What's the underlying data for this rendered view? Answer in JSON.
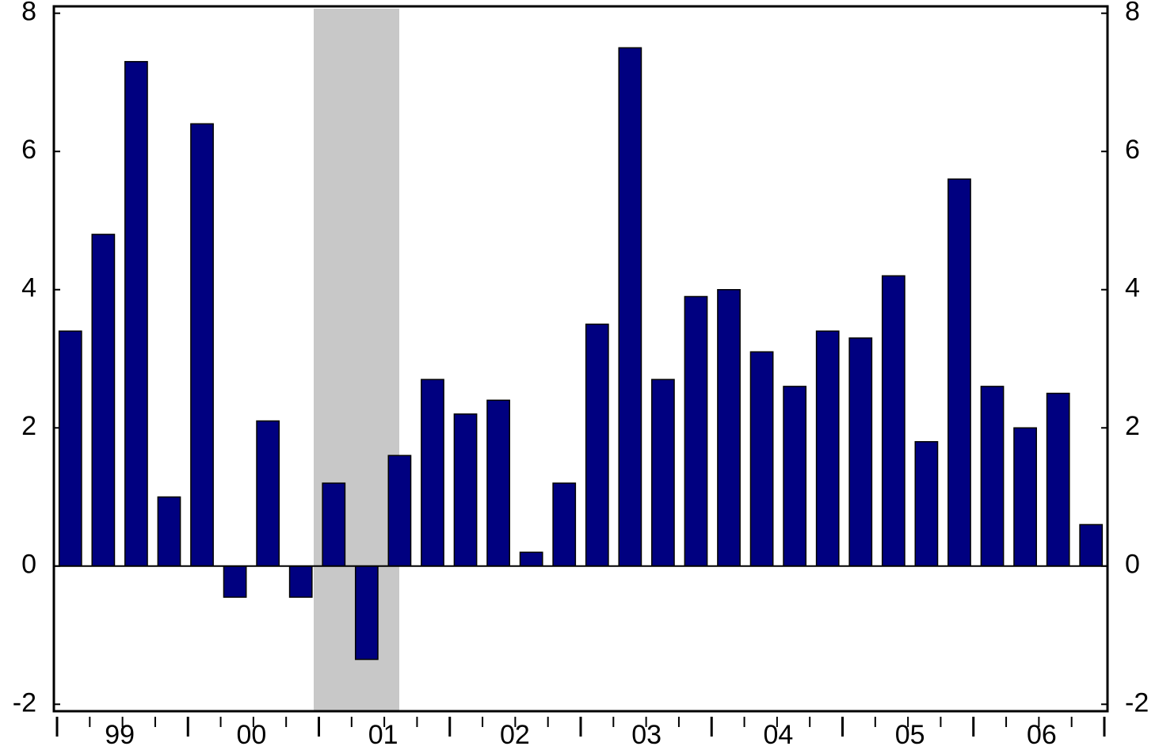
{
  "chart_data": {
    "type": "bar",
    "categories": [
      null,
      null,
      null,
      null,
      null,
      null,
      null,
      null,
      null,
      null,
      null,
      null,
      null,
      null,
      null,
      null,
      null,
      null,
      null,
      null,
      null,
      null,
      null,
      null,
      null,
      null,
      null,
      null,
      null,
      null,
      null,
      null
    ],
    "category_groups": [
      "99",
      "00",
      "01",
      "02",
      "03",
      "04",
      "05",
      "06"
    ],
    "values": [
      3.4,
      4.8,
      7.3,
      1.0,
      6.4,
      -0.45,
      2.1,
      -0.45,
      1.2,
      -1.35,
      1.6,
      2.7,
      2.2,
      2.4,
      0.2,
      1.2,
      3.5,
      7.5,
      2.7,
      3.9,
      4.0,
      3.1,
      2.6,
      3.4,
      3.3,
      4.2,
      1.8,
      5.6,
      2.6,
      2.0,
      2.5,
      0.6
    ],
    "color": "#000080",
    "ylim": [
      -2.1,
      8.1
    ],
    "yticks": [
      -2,
      0,
      2,
      4,
      6,
      8
    ]
  }
}
